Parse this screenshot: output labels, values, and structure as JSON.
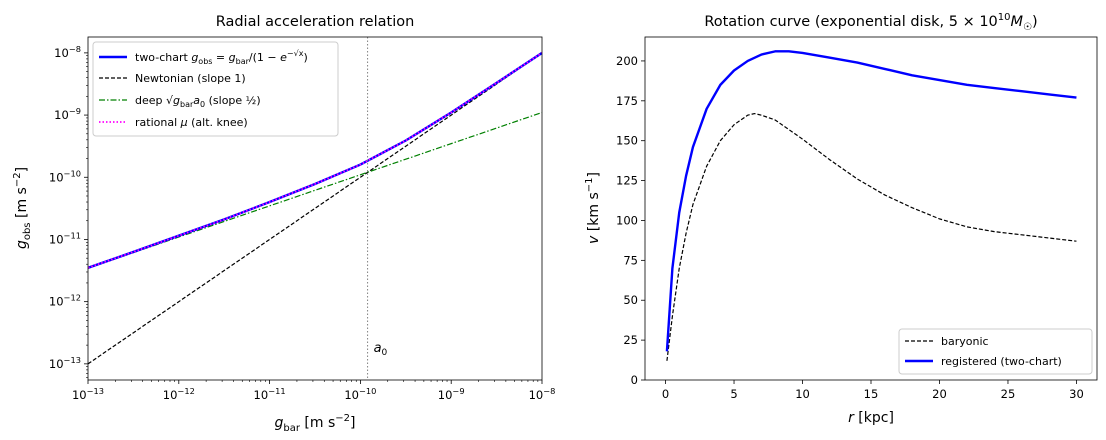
{
  "chart_data": [
    {
      "type": "line",
      "title": "Radial acceleration relation",
      "xlabel": "g_bar [m s^-2]",
      "ylabel": "g_obs [m s^-2]",
      "xscale": "log",
      "yscale": "log",
      "xlim": [
        1e-13,
        1e-08
      ],
      "ylim": [
        5.5e-14,
        1.8e-08
      ],
      "xticks": [
        {
          "value": 1e-13,
          "label": "10^-13"
        },
        {
          "value": 1e-12,
          "label": "10^-12"
        },
        {
          "value": 1e-11,
          "label": "10^-11"
        },
        {
          "value": 1e-10,
          "label": "10^-10"
        },
        {
          "value": 1e-09,
          "label": "10^-9"
        },
        {
          "value": 1e-08,
          "label": "10^-8"
        }
      ],
      "yticks": [
        {
          "value": 1e-13,
          "label": "10^-13"
        },
        {
          "value": 1e-12,
          "label": "10^-12"
        },
        {
          "value": 1e-11,
          "label": "10^-11"
        },
        {
          "value": 1e-10,
          "label": "10^-10"
        },
        {
          "value": 1e-09,
          "label": "10^-9"
        },
        {
          "value": 1e-08,
          "label": "10^-8"
        }
      ],
      "grid": false,
      "legend_position": "top-left",
      "annotation": {
        "label": "a_0",
        "x": 1.2e-10
      },
      "series": [
        {
          "name": "two-chart g_obs = g_bar/(1 − e^−√x)",
          "color": "#0000ff",
          "style": "solid",
          "x": [
            1e-13,
            3.16e-13,
            1e-12,
            3.16e-12,
            1e-11,
            3.16e-11,
            1e-10,
            3.16e-10,
            1e-09,
            3.16e-09,
            1e-08
          ],
          "y": [
            3.5e-12,
            6.3e-12,
            1.15e-11,
            2.1e-11,
            4e-11,
            7.8e-11,
            1.6e-10,
            3.9e-10,
            1.1e-09,
            3.3e-09,
            1e-08
          ]
        },
        {
          "name": "Newtonian (slope 1)",
          "color": "#000000",
          "style": "dashed",
          "x": [
            1e-13,
            1e-08
          ],
          "y": [
            1e-13,
            1e-08
          ]
        },
        {
          "name": "deep √(g_bar a_0) (slope 1/2)",
          "color": "#008000",
          "style": "dashdot",
          "x": [
            1e-13,
            1e-08
          ],
          "y": [
            3.46e-12,
            1.1e-09
          ]
        },
        {
          "name": "rational μ (alt. knee)",
          "color": "#ff00ff",
          "style": "dotted",
          "x": [
            1e-13,
            3.16e-13,
            1e-12,
            3.16e-12,
            1e-11,
            3.16e-11,
            1e-10,
            3.16e-10,
            1e-09,
            3.16e-09,
            1e-08
          ],
          "y": [
            3.5e-12,
            6.3e-12,
            1.15e-11,
            2.1e-11,
            4e-11,
            7.8e-11,
            1.6e-10,
            3.9e-10,
            1.1e-09,
            3.3e-09,
            1e-08
          ]
        }
      ]
    },
    {
      "type": "line",
      "title": "Rotation curve (exponential disk, 5 × 10^10 M☉)",
      "xlabel": "r [kpc]",
      "ylabel": "v [km s^-1]",
      "xlim": [
        -1.5,
        31.5
      ],
      "ylim": [
        0,
        215
      ],
      "xticks": [
        0,
        5,
        10,
        15,
        20,
        25,
        30
      ],
      "yticks": [
        0,
        25,
        50,
        75,
        100,
        125,
        150,
        175,
        200
      ],
      "grid": false,
      "legend_position": "bottom-right",
      "series": [
        {
          "name": "baryonic",
          "color": "#000000",
          "style": "dashed",
          "x": [
            0.1,
            0.5,
            1,
            1.5,
            2,
            3,
            4,
            5,
            6,
            6.5,
            7,
            8,
            9,
            10,
            12,
            14,
            16,
            18,
            20,
            22,
            24,
            26,
            28,
            30
          ],
          "y": [
            12,
            40,
            70,
            92,
            110,
            134,
            150,
            160,
            166,
            167,
            166,
            163,
            157,
            151,
            138,
            126,
            116,
            108,
            101,
            96,
            93,
            91,
            89,
            87
          ]
        },
        {
          "name": "registered (two-chart)",
          "color": "#0000ff",
          "style": "solid",
          "x": [
            0.1,
            0.5,
            1,
            1.5,
            2,
            3,
            4,
            5,
            6,
            7,
            8,
            9,
            10,
            12,
            14,
            16,
            18,
            20,
            22,
            24,
            26,
            28,
            30
          ],
          "y": [
            18,
            70,
            105,
            128,
            146,
            170,
            185,
            194,
            200,
            204,
            206,
            206,
            205,
            202,
            199,
            195,
            191,
            188,
            185,
            183,
            181,
            179,
            177
          ]
        }
      ]
    }
  ]
}
